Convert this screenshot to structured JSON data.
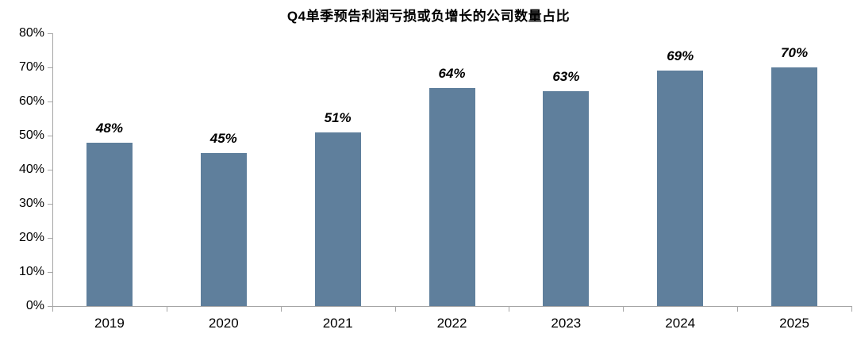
{
  "title": "Q4单季预告利润亏损或负增长的公司数量占比",
  "chart_data": {
    "type": "bar",
    "title": "Q4单季预告利润亏损或负增长的公司数量占比",
    "categories": [
      "2019",
      "2020",
      "2021",
      "2022",
      "2023",
      "2024",
      "2025"
    ],
    "values": [
      48,
      45,
      51,
      64,
      63,
      69,
      70
    ],
    "data_labels": [
      "48%",
      "45%",
      "51%",
      "64%",
      "63%",
      "69%",
      "70%"
    ],
    "xlabel": "",
    "ylabel": "",
    "ylim": [
      0,
      80
    ],
    "ytick_step": 10,
    "ytick_labels": [
      "0%",
      "10%",
      "20%",
      "30%",
      "40%",
      "50%",
      "60%",
      "70%",
      "80%"
    ],
    "grid": false,
    "legend_position": "none",
    "bar_color": "#5f7f9c",
    "axis_color": "#a6a6a6",
    "text_color": "#000000"
  }
}
